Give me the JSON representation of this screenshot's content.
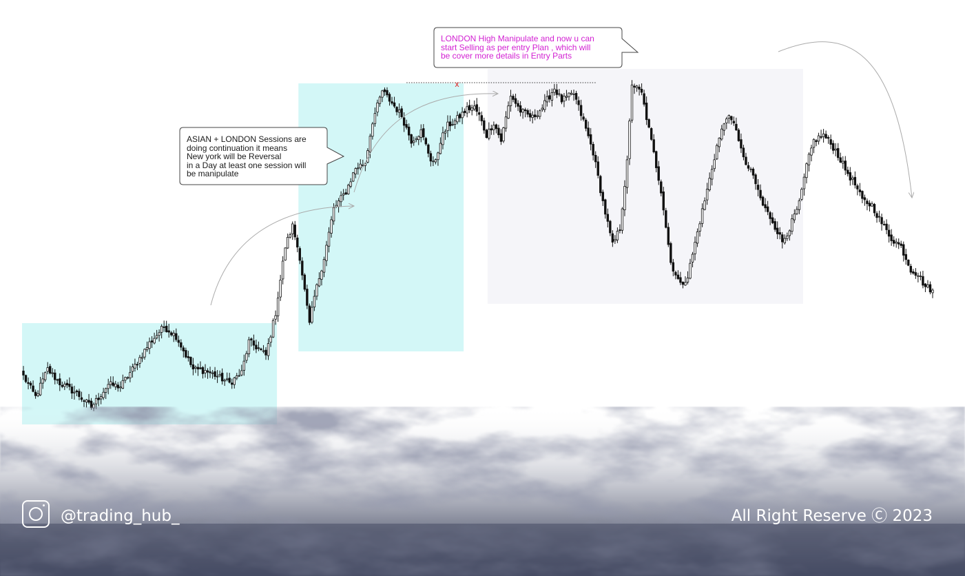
{
  "annotations": {
    "asian_london": "ASIAN + LONDON Sessions are\ndoing continuation it means\nNew york will be Reversal\nin a Day at least one session will\nbe manipulate",
    "london_high": "LONDON High Manipulate and now u can\nstart Selling as per entry Plan , which will\nbe cover more details in Entry Parts",
    "sweep_marker": "x"
  },
  "footer": {
    "handle": "@trading_hub_",
    "copyright": "All Right Reserve Ⓒ 2023",
    "icon": "instagram-icon"
  },
  "colors": {
    "session_box": "#d3f7f7",
    "newyork_box": "#f5f5f9",
    "candle": "#111111",
    "callout_magenta": "#d21fd2",
    "sweep_marker": "#e02020",
    "smoke": "#4a5068"
  },
  "chart_data": {
    "type": "candlestick",
    "title": "",
    "xlabel": "",
    "ylabel": "",
    "note": "unlabeled price series; values are relative price units read from the image (0 = lowest low)",
    "anchors": [
      [
        0,
        70
      ],
      [
        5,
        40
      ],
      [
        10,
        80
      ],
      [
        15,
        60
      ],
      [
        22,
        45
      ],
      [
        28,
        25
      ],
      [
        35,
        58
      ],
      [
        40,
        55
      ],
      [
        45,
        80
      ],
      [
        52,
        118
      ],
      [
        58,
        142
      ],
      [
        63,
        128
      ],
      [
        70,
        80
      ],
      [
        75,
        78
      ],
      [
        80,
        70
      ],
      [
        85,
        60
      ],
      [
        90,
        75
      ],
      [
        93,
        120
      ],
      [
        97,
        110
      ],
      [
        100,
        100
      ],
      [
        104,
        162
      ],
      [
        108,
        258
      ],
      [
        111,
        288
      ],
      [
        114,
        243
      ],
      [
        118,
        145
      ],
      [
        120,
        185
      ],
      [
        124,
        242
      ],
      [
        128,
        313
      ],
      [
        133,
        338
      ],
      [
        137,
        372
      ],
      [
        141,
        380
      ],
      [
        144,
        440
      ],
      [
        148,
        484
      ],
      [
        153,
        462
      ],
      [
        156,
        448
      ],
      [
        160,
        412
      ],
      [
        164,
        425
      ],
      [
        168,
        385
      ],
      [
        170,
        380
      ],
      [
        172,
        412
      ],
      [
        175,
        434
      ],
      [
        178,
        440
      ],
      [
        183,
        458
      ],
      [
        186,
        460
      ],
      [
        188,
        448
      ],
      [
        191,
        420
      ],
      [
        194,
        438
      ],
      [
        197,
        412
      ],
      [
        201,
        478
      ],
      [
        205,
        455
      ],
      [
        210,
        445
      ],
      [
        214,
        460
      ],
      [
        219,
        488
      ],
      [
        222,
        470
      ],
      [
        227,
        480
      ],
      [
        231,
        440
      ],
      [
        235,
        395
      ],
      [
        239,
        323
      ],
      [
        243,
        260
      ],
      [
        246,
        285
      ],
      [
        249,
        380
      ],
      [
        251,
        495
      ],
      [
        255,
        480
      ],
      [
        258,
        428
      ],
      [
        263,
        340
      ],
      [
        267,
        235
      ],
      [
        271,
        202
      ],
      [
        274,
        215
      ],
      [
        279,
        295
      ],
      [
        282,
        340
      ],
      [
        286,
        404
      ],
      [
        290,
        448
      ],
      [
        294,
        430
      ],
      [
        297,
        384
      ],
      [
        301,
        360
      ],
      [
        305,
        318
      ],
      [
        309,
        295
      ],
      [
        313,
        265
      ],
      [
        316,
        285
      ],
      [
        320,
        320
      ],
      [
        323,
        375
      ],
      [
        326,
        412
      ],
      [
        330,
        420
      ],
      [
        335,
        398
      ],
      [
        339,
        370
      ],
      [
        343,
        348
      ],
      [
        346,
        325
      ],
      [
        350,
        318
      ],
      [
        354,
        292
      ],
      [
        358,
        270
      ],
      [
        362,
        258
      ],
      [
        366,
        225
      ],
      [
        369,
        218
      ],
      [
        372,
        200
      ],
      [
        375,
        195
      ]
    ],
    "sessions": [
      {
        "label": "asian",
        "start": 0,
        "end": 104,
        "low": 0,
        "high": 147
      },
      {
        "label": "london",
        "start": 114,
        "end": 181,
        "low": 106,
        "high": 495
      },
      {
        "label": "newyork",
        "start": 192,
        "end": 321,
        "low": 175,
        "high": 516
      }
    ],
    "levels": [
      {
        "label": "london-high",
        "value": 495,
        "from": 158,
        "to": 236
      }
    ]
  }
}
